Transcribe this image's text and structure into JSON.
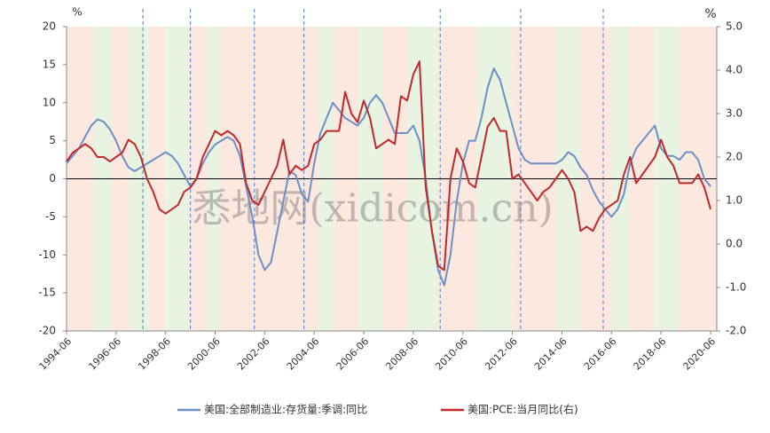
{
  "chart_data": {
    "type": "line",
    "watermark": "悉地网(xidicom.cn)",
    "y_unit": "%",
    "y2_unit": "%",
    "x": [
      "1994-06",
      "1994-09",
      "1994-12",
      "1995-03",
      "1995-06",
      "1995-09",
      "1995-12",
      "1996-03",
      "1996-06",
      "1996-09",
      "1996-12",
      "1997-03",
      "1997-06",
      "1997-09",
      "1997-12",
      "1998-03",
      "1998-06",
      "1998-09",
      "1998-12",
      "1999-03",
      "1999-06",
      "1999-09",
      "1999-12",
      "2000-03",
      "2000-06",
      "2000-09",
      "2000-12",
      "2001-03",
      "2001-06",
      "2001-09",
      "2001-12",
      "2002-03",
      "2002-06",
      "2002-09",
      "2002-12",
      "2003-03",
      "2003-06",
      "2003-09",
      "2003-12",
      "2004-03",
      "2004-06",
      "2004-09",
      "2004-12",
      "2005-03",
      "2005-06",
      "2005-09",
      "2005-12",
      "2006-03",
      "2006-06",
      "2006-09",
      "2006-12",
      "2007-03",
      "2007-06",
      "2007-09",
      "2007-12",
      "2008-03",
      "2008-06",
      "2008-09",
      "2008-12",
      "2009-03",
      "2009-06",
      "2009-09",
      "2009-12",
      "2010-03",
      "2010-06",
      "2010-09",
      "2010-12",
      "2011-03",
      "2011-06",
      "2011-09",
      "2011-12",
      "2012-03",
      "2012-06",
      "2012-09",
      "2012-12",
      "2013-03",
      "2013-06",
      "2013-09",
      "2013-12",
      "2014-03",
      "2014-06",
      "2014-09",
      "2014-12",
      "2015-03",
      "2015-06",
      "2015-09",
      "2015-12",
      "2016-03",
      "2016-06",
      "2016-09",
      "2016-12",
      "2017-03",
      "2017-06",
      "2017-09",
      "2017-12",
      "2018-03",
      "2018-06",
      "2018-09",
      "2018-12",
      "2019-03",
      "2019-06",
      "2019-09",
      "2019-12",
      "2020-03",
      "2020-06"
    ],
    "xlim": [
      "1994-06",
      "2020-09"
    ],
    "xticks": [
      "1994-06",
      "1996-06",
      "1998-06",
      "2000-06",
      "2002-06",
      "2004-06",
      "2006-06",
      "2008-06",
      "2010-06",
      "2012-06",
      "2014-06",
      "2016-06",
      "2018-06",
      "2020-06"
    ],
    "ylim": [
      -20,
      20
    ],
    "yticks": [
      -20,
      -15,
      -10,
      -5,
      0,
      5,
      10,
      15,
      20
    ],
    "y2lim": [
      -2,
      5
    ],
    "y2ticks": [
      {
        "value": -2,
        "label": "-2.0"
      },
      {
        "value": -1,
        "label": "-1.0"
      },
      {
        "value": 0,
        "label": "0.0"
      },
      {
        "value": 1,
        "label": "1.0"
      },
      {
        "value": 2,
        "label": "2.0"
      },
      {
        "value": 3,
        "label": "3.0"
      },
      {
        "value": 4,
        "label": "4.0"
      },
      {
        "value": 5,
        "label": "5.0"
      }
    ],
    "background_bands": [
      {
        "start": "1994-06",
        "end": "1995-07",
        "color": "#fde8df"
      },
      {
        "start": "1995-07",
        "end": "1996-04",
        "color": "#e8f3e2"
      },
      {
        "start": "1996-04",
        "end": "1996-12",
        "color": "#fde8df"
      },
      {
        "start": "1996-12",
        "end": "1997-10",
        "color": "#e8f3e2"
      },
      {
        "start": "1997-10",
        "end": "1998-06",
        "color": "#fde8df"
      },
      {
        "start": "1998-06",
        "end": "1999-05",
        "color": "#e8f3e2"
      },
      {
        "start": "1999-05",
        "end": "2000-02",
        "color": "#fde8df"
      },
      {
        "start": "2000-02",
        "end": "2000-08",
        "color": "#e8f3e2"
      },
      {
        "start": "2000-08",
        "end": "2004-08",
        "color": "#fde8df"
      },
      {
        "start": "2004-08",
        "end": "2005-03",
        "color": "#e8f3e2"
      },
      {
        "start": "2005-03",
        "end": "2006-03",
        "color": "#fde8df"
      },
      {
        "start": "2006-03",
        "end": "2007-03",
        "color": "#e8f3e2"
      },
      {
        "start": "2007-03",
        "end": "2008-03",
        "color": "#fde8df"
      },
      {
        "start": "2008-03",
        "end": "2009-06",
        "color": "#e8f3e2"
      },
      {
        "start": "2009-06",
        "end": "2011-01",
        "color": "#fde8df"
      },
      {
        "start": "2011-01",
        "end": "2012-06",
        "color": "#e8f3e2"
      },
      {
        "start": "2012-06",
        "end": "2014-03",
        "color": "#fde8df"
      },
      {
        "start": "2014-03",
        "end": "2015-03",
        "color": "#e8f3e2"
      },
      {
        "start": "2015-03",
        "end": "2016-06",
        "color": "#fde8df"
      },
      {
        "start": "2016-06",
        "end": "2017-03",
        "color": "#e8f3e2"
      },
      {
        "start": "2017-03",
        "end": "2018-03",
        "color": "#fde8df"
      },
      {
        "start": "2018-03",
        "end": "2019-03",
        "color": "#e8f3e2"
      },
      {
        "start": "2019-03",
        "end": "2020-09",
        "color": "#fde8df"
      }
    ],
    "vlines": [
      "1997-07",
      "1999-06",
      "2002-01",
      "2004-01",
      "2009-07",
      "2012-10",
      "2016-02"
    ],
    "series": [
      {
        "name": "美国:全部制造业:存货量:季调:同比",
        "color": "#6c8fc6",
        "values": [
          2,
          3,
          4,
          5.5,
          7,
          7.8,
          7.5,
          6.5,
          5,
          3,
          1.5,
          1,
          1.5,
          2,
          2.5,
          3,
          3.5,
          3,
          2,
          0.5,
          -1,
          0,
          2,
          3.5,
          4.5,
          5,
          5.5,
          5,
          3,
          -1,
          -5,
          -10,
          -12,
          -11,
          -7,
          -3,
          1,
          0.5,
          -2,
          -3,
          2,
          6,
          8,
          10,
          9,
          8,
          7.5,
          7,
          8,
          10,
          11,
          10,
          8,
          6,
          6,
          6,
          7,
          5,
          0,
          -7,
          -12,
          -14,
          -10,
          -3,
          2,
          5,
          5,
          8,
          12,
          14.5,
          13,
          10,
          7,
          4,
          2.5,
          2,
          2,
          2,
          2,
          2,
          2.5,
          3.5,
          3,
          1.5,
          0.5,
          -1.5,
          -3,
          -4,
          -5,
          -4,
          -2,
          2,
          4,
          5,
          6,
          7,
          4,
          3,
          3,
          2.5,
          3.5,
          3.5,
          2.5,
          0,
          -1
        ]
      },
      {
        "name": "美国:PCE:当月同比(右)",
        "color": "#c0282d",
        "axis": "y2",
        "values": [
          1.9,
          2.1,
          2.2,
          2.3,
          2.2,
          2.0,
          2.0,
          1.9,
          2.0,
          2.1,
          2.4,
          2.3,
          2.0,
          1.5,
          1.2,
          0.8,
          0.7,
          0.8,
          0.9,
          1.2,
          1.3,
          1.5,
          2.0,
          2.3,
          2.6,
          2.5,
          2.6,
          2.5,
          2.3,
          1.4,
          1.0,
          0.9,
          1.2,
          1.5,
          1.8,
          2.4,
          1.6,
          1.8,
          1.7,
          1.8,
          2.3,
          2.4,
          2.6,
          2.6,
          2.6,
          3.5,
          3.0,
          2.8,
          3.3,
          2.9,
          2.2,
          2.3,
          2.4,
          2.3,
          3.4,
          3.3,
          3.9,
          4.2,
          1.3,
          0.3,
          -0.5,
          -0.6,
          1.5,
          2.2,
          1.9,
          1.4,
          1.3,
          2.0,
          2.7,
          2.9,
          2.6,
          2.6,
          1.5,
          1.6,
          1.4,
          1.2,
          1.0,
          1.2,
          1.3,
          1.5,
          1.7,
          1.5,
          1.2,
          0.3,
          0.4,
          0.3,
          0.6,
          0.8,
          0.9,
          1.0,
          1.6,
          2.0,
          1.4,
          1.6,
          1.8,
          2.0,
          2.4,
          2.0,
          1.8,
          1.4,
          1.4,
          1.4,
          1.6,
          1.3,
          0.8
        ]
      }
    ]
  }
}
